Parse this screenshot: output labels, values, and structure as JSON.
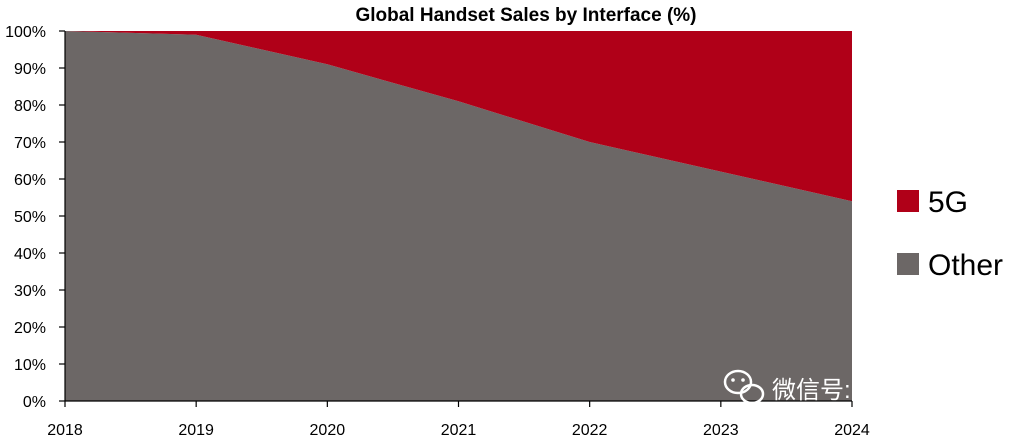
{
  "chart_data": {
    "type": "area",
    "stacking": "percent",
    "title": "Global Handset Sales by Interface (%)",
    "xlabel": "",
    "ylabel": "",
    "categories": [
      "2018",
      "2019",
      "2020",
      "2021",
      "2022",
      "2023",
      "2024"
    ],
    "series": [
      {
        "name": "Other",
        "color": "#6c6766",
        "values": [
          100,
          99,
          91,
          81,
          70,
          62,
          54
        ]
      },
      {
        "name": "5G",
        "color": "#b00018",
        "values": [
          0,
          1,
          9,
          19,
          30,
          38,
          46
        ]
      }
    ],
    "ylim": [
      0,
      100
    ],
    "yticks": [
      "0%",
      "10%",
      "20%",
      "30%",
      "40%",
      "50%",
      "60%",
      "70%",
      "80%",
      "90%",
      "100%"
    ],
    "grid": false,
    "legend": {
      "position": "right",
      "entries": [
        "5G",
        "Other"
      ]
    }
  },
  "watermark": {
    "text": "微信号: angmobile",
    "icon": "wechat-icon"
  }
}
